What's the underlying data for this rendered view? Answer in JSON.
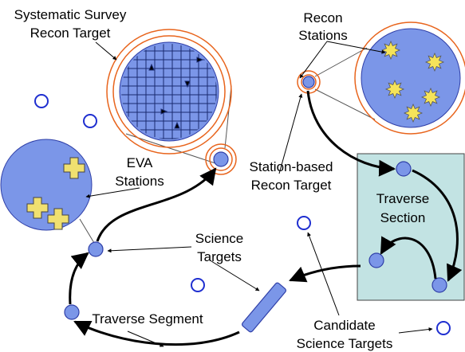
{
  "annotations": [
    {
      "lines": [
        "Systematic Survey",
        "Recon Target"
      ]
    },
    {
      "lines": [
        "Recon",
        "Stations"
      ]
    },
    {
      "lines": [
        "EVA",
        "Stations"
      ]
    },
    {
      "lines": [
        "Station-based",
        "Recon Target"
      ]
    },
    {
      "lines": [
        "Traverse",
        "Section"
      ]
    },
    {
      "lines": [
        "Science",
        "Targets"
      ]
    },
    {
      "lines": [
        "Traverse Segment"
      ]
    },
    {
      "lines": [
        "Candidate",
        "Science Targets"
      ]
    }
  ]
}
